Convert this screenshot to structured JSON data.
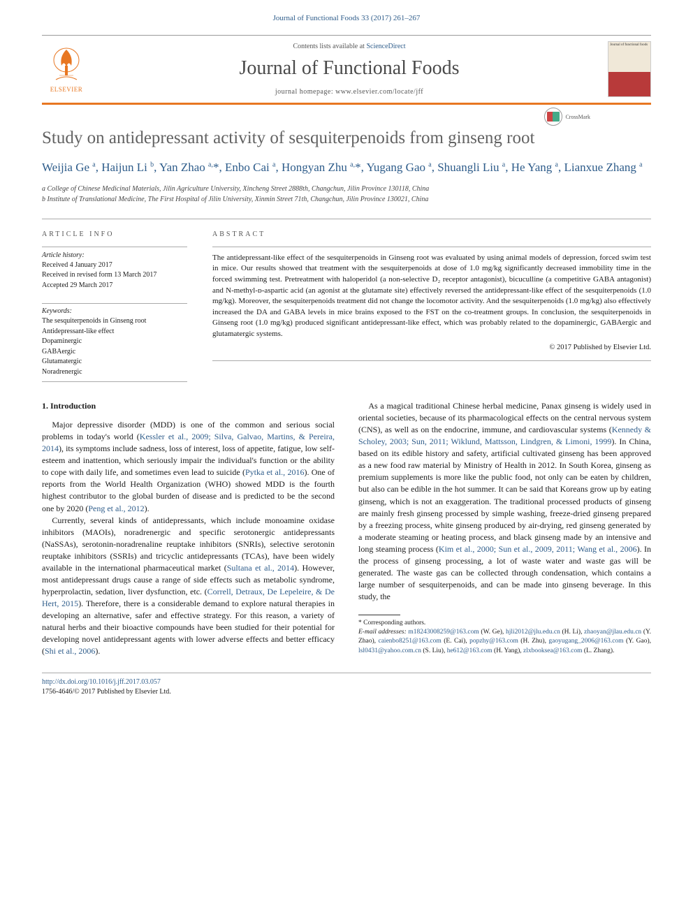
{
  "header": {
    "citation": "Journal of Functional Foods 33 (2017) 261–267",
    "contents_prefix": "Contents lists available at ",
    "contents_link": "ScienceDirect",
    "journal_name": "Journal of Functional Foods",
    "homepage_prefix": "journal homepage: ",
    "homepage_url": "www.elsevier.com/locate/jff",
    "elsevier_label": "ELSEVIER",
    "cover_text": "Journal of functional foods"
  },
  "crossmark": {
    "label": "CrossMark"
  },
  "title": "Study on antidepressant activity of sesquiterpenoids from ginseng root",
  "authors_html": "Weijia Ge <sup>a</sup>, Haijun Li <sup>b</sup>, Yan Zhao <sup>a,</sup><span class='star'>*</span>, Enbo Cai <sup>a</sup>, Hongyan Zhu <sup>a,</sup><span class='star'>*</span>, Yugang Gao <sup>a</sup>, Shuangli Liu <sup>a</sup>, He Yang <sup>a</sup>, Lianxue Zhang <sup>a</sup>",
  "affiliations": [
    "a College of Chinese Medicinal Materials, Jilin Agriculture University, Xincheng Street 2888th, Changchun, Jilin Province 130118, China",
    "b Institute of Translational Medicine, The First Hospital of Jilin University, Xinmin Street 71th, Changchun, Jilin Province 130021, China"
  ],
  "article_info": {
    "heading": "article info",
    "history_h": "Article history:",
    "received": "Received 4 January 2017",
    "revised": "Received in revised form 13 March 2017",
    "accepted": "Accepted 29 March 2017",
    "keywords_h": "Keywords:",
    "keywords": [
      "The sesquiterpenoids in Ginseng root",
      "Antidepressant-like effect",
      "Dopaminergic",
      "GABAergic",
      "Glutamatergic",
      "Noradrenergic"
    ]
  },
  "abstract": {
    "heading": "abstract",
    "body": "The antidepressant-like effect of the sesquiterpenoids in Ginseng root was evaluated by using animal models of depression, forced swim test in mice. Our results showed that treatment with the sesquiterpenoids at dose of 1.0 mg/kg significantly decreased immobility time in the forced swimming test. Pretreatment with haloperidol (a non-selective D₂ receptor antagonist), bicuculline (a competitive GABA antagonist) and N-methyl-ᴅ-aspartic acid (an agonist at the glutamate site) effectively reversed the antidepressant-like effect of the sesquiterpenoids (1.0 mg/kg). Moreover, the sesquiterpenoids treatment did not change the locomotor activity. And the sesquiterpenoids (1.0 mg/kg) also effectively increased the DA and GABA levels in mice brains exposed to the FST on the co-treatment groups. In conclusion, the sesquiterpenoids in Ginseng root (1.0 mg/kg) produced significant antidepressant-like effect, which was probably related to the dopaminergic, GABAergic and glutamatergic systems.",
    "copyright": "© 2017 Published by Elsevier Ltd."
  },
  "body": {
    "sec1_h": "1. Introduction",
    "p1a": "Major depressive disorder (MDD) is one of the common and serious social problems in today's world (",
    "ref1": "Kessler et al., 2009; Silva, Galvao, Martins, & Pereira, 2014",
    "p1b": "), its symptoms include sadness, loss of interest, loss of appetite, fatigue, low self-esteem and inattention, which seriously impair the individual's function or the ability to cope with daily life, and sometimes even lead to suicide (",
    "ref2": "Pytka et al., 2016",
    "p1c": "). One of reports from the World Health Organization (WHO) showed MDD is the fourth highest contributor to the global burden of disease and is predicted to be the second one by 2020 (",
    "ref3": "Peng et al., 2012",
    "p1d": ").",
    "p2a": "Currently, several kinds of antidepressants, which include monoamine oxidase inhibitors (MAOIs), noradrenergic and specific serotonergic antidepressants (NaSSAs), serotonin-noradrenaline reuptake inhibitors (SNRIs), selective serotonin reuptake inhibitors (SSRIs) and tricyclic antidepressants (TCAs), have been widely available in the international pharmaceutical market (",
    "ref4": "Sultana et al., 2014",
    "p2b": "). However, most antidepressant drugs cause a range of side effects such as metabolic syndrome, hyperprolactin, sedation, liver dysfunction, etc. (",
    "ref5": "Correll, Detraux, De Lepeleire, & De ",
    "ref5b": "Hert, 2015",
    "p2c": "). Therefore, there is a considerable demand to explore natural therapies in developing an alternative, safer and effective strategy. For this reason, a variety of natural herbs and their bioactive compounds have been studied for their potential for developing novel antidepressant agents with lower adverse effects and better efficacy (",
    "ref6": "Shi et al., 2006",
    "p2d": ").",
    "p3a": "As a magical traditional Chinese herbal medicine, Panax ginseng is widely used in oriental societies, because of its pharmacological effects on the central nervous system (CNS), as well as on the endocrine, immune, and cardiovascular systems (",
    "ref7": "Kennedy & Scholey, 2003; Sun, 2011; Wiklund, Mattsson, Lindgren, & Limoni, 1999",
    "p3b": "). In China, based on its edible history and safety, artificial cultivated ginseng has been approved as a new food raw material by Ministry of Health in 2012. In South Korea, ginseng as premium supplements is more like the public food, not only can be eaten by children, but also can be edible in the hot summer. It can be said that Koreans grow up by eating ginseng, which is not an exaggeration. The traditional processed products of ginseng are mainly fresh ginseng processed by simple washing, freeze-dried ginseng prepared by a freezing process, white ginseng produced by air-drying, red ginseng generated by a moderate steaming or heating process, and black ginseng made by an intensive and long steaming process (",
    "ref8": "Kim et al., 2000; Sun et al., 2009, 2011; Wang et al., 2006",
    "p3c": "). In the process of ginseng processing, a lot of waste water and waste gas will be generated. The waste gas can be collected through condensation, which contains a large number of sesquiterpenoids, and can be made into ginseng beverage. In this study, the"
  },
  "footnotes": {
    "corr": "* Corresponding authors.",
    "emails_label": "E-mail addresses: ",
    "emails": [
      {
        "addr": "m18243008259@163.com",
        "who": "(W. Ge)"
      },
      {
        "addr": "hjli2012@jlu.edu.cn",
        "who": "(H. Li)"
      },
      {
        "addr": "zhaoyan@jlau.edu.cn",
        "who": "(Y. Zhao)"
      },
      {
        "addr": "caienbo8251@163.com",
        "who": "(E. Cai)"
      },
      {
        "addr": "popzhy@163.com",
        "who": "(H. Zhu)"
      },
      {
        "addr": "gaoyugang_2006@163.com",
        "who": "(Y. Gao)"
      },
      {
        "addr": "lsl0431@yahoo.com.cn",
        "who": "(S. Liu)"
      },
      {
        "addr": "he612@163.com",
        "who": "(H. Yang)"
      },
      {
        "addr": "zlxbooksea@163.com",
        "who": "(L. Zhang)"
      }
    ]
  },
  "footer": {
    "doi": "http://dx.doi.org/10.1016/j.jff.2017.03.057",
    "issn_line": "1756-4646/© 2017 Published by Elsevier Ltd."
  },
  "colors": {
    "link": "#2e5c8a",
    "accent": "#e87722",
    "text": "#1a1a1a",
    "muted": "#555555"
  }
}
